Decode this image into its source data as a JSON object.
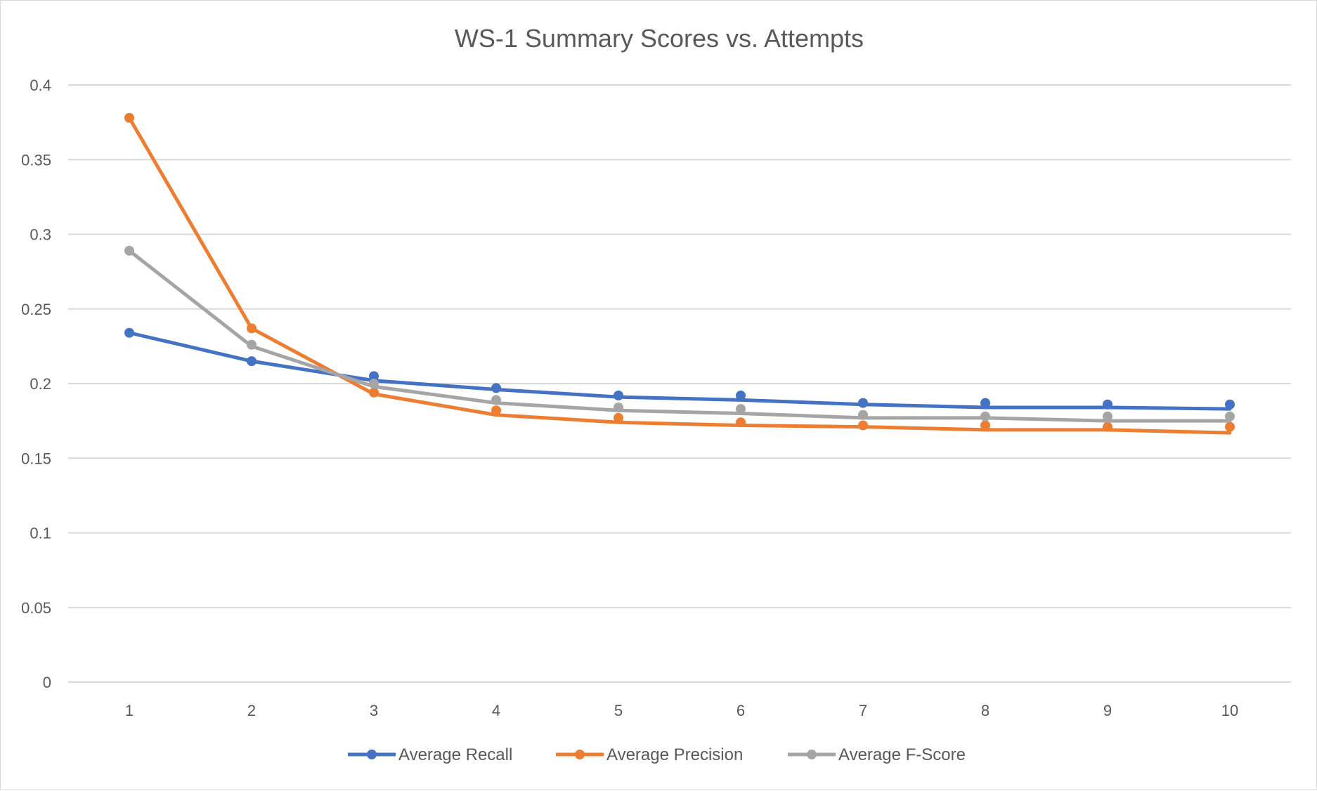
{
  "chart_data": {
    "type": "line",
    "title": "WS-1 Summary Scores vs. Attempts",
    "xlabel": "",
    "ylabel": "",
    "categories": [
      "1",
      "2",
      "3",
      "4",
      "5",
      "6",
      "7",
      "8",
      "9",
      "10"
    ],
    "y_ticks": [
      "0",
      "0.05",
      "0.1",
      "0.15",
      "0.2",
      "0.25",
      "0.3",
      "0.35",
      "0.4"
    ],
    "ylim": [
      0,
      0.4
    ],
    "grid": true,
    "legend_position": "bottom",
    "series": [
      {
        "name": "Average Recall",
        "color": "#4472C4",
        "values": [
          0.234,
          0.215,
          0.205,
          0.197,
          0.192,
          0.192,
          0.187,
          0.187,
          0.186,
          0.186
        ],
        "trend": [
          0.234,
          0.215,
          0.202,
          0.196,
          0.191,
          0.189,
          0.186,
          0.184,
          0.184,
          0.183
        ]
      },
      {
        "name": "Average Precision",
        "color": "#ED7D31",
        "values": [
          0.378,
          0.237,
          0.194,
          0.182,
          0.177,
          0.174,
          0.172,
          0.172,
          0.171,
          0.171
        ],
        "trend": [
          0.378,
          0.237,
          0.193,
          0.179,
          0.174,
          0.172,
          0.171,
          0.169,
          0.169,
          0.167
        ]
      },
      {
        "name": "Average F-Score",
        "color": "#A5A5A5",
        "values": [
          0.289,
          0.226,
          0.2,
          0.189,
          0.184,
          0.183,
          0.179,
          0.178,
          0.178,
          0.178
        ],
        "trend": [
          0.289,
          0.225,
          0.198,
          0.187,
          0.182,
          0.18,
          0.177,
          0.177,
          0.175,
          0.175
        ]
      }
    ]
  }
}
